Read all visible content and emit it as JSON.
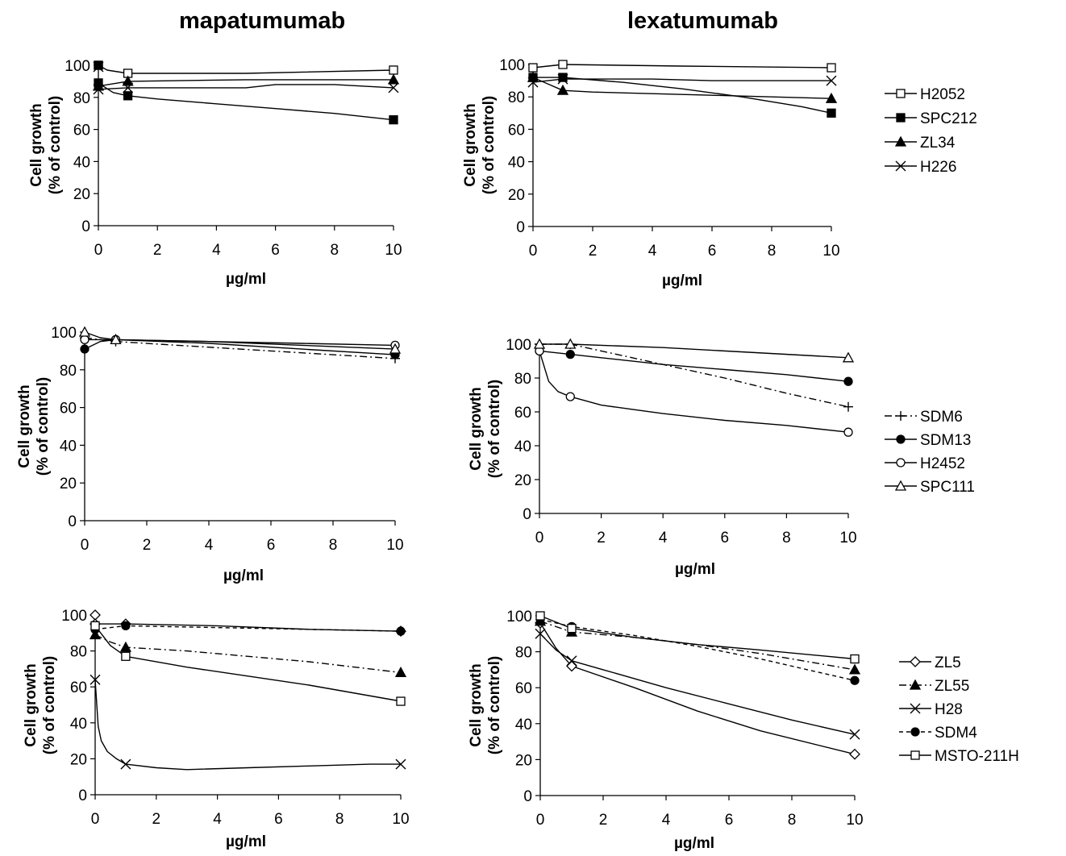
{
  "column_titles": [
    "mapatumumab",
    "lexatumumab"
  ],
  "chart_data": [
    {
      "type": "line",
      "title": "mapatumumab",
      "xlabel": "µg/ml",
      "ylabel": "Cell growth (% of control)",
      "xlim": [
        0,
        10
      ],
      "ylim": [
        0,
        100
      ],
      "xticks": [
        0,
        2,
        4,
        6,
        8,
        10
      ],
      "yticks": [
        0,
        20,
        40,
        60,
        80,
        100
      ],
      "grid": false,
      "series": [
        {
          "name": "H2052",
          "marker": "square-open",
          "dash": "solid",
          "x": [
            0,
            1,
            10
          ],
          "y": [
            100,
            95,
            97
          ],
          "curve_x": [
            0,
            0.3,
            1,
            5,
            10
          ],
          "curve_y": [
            100,
            97,
            95,
            95,
            97
          ]
        },
        {
          "name": "SPC212",
          "marker": "square-filled",
          "dash": "solid",
          "x": [
            0,
            0,
            1,
            10
          ],
          "y": [
            100,
            89,
            81,
            66
          ],
          "curve_x": [
            0,
            0.5,
            1,
            2,
            4,
            6,
            8,
            10
          ],
          "curve_y": [
            89,
            83,
            81,
            79,
            76,
            73,
            70,
            66
          ]
        },
        {
          "name": "ZL34",
          "marker": "triangle-filled",
          "dash": "solid",
          "x": [
            0,
            1,
            10
          ],
          "y": [
            87,
            90,
            91
          ],
          "curve_x": [
            0,
            1,
            5,
            10
          ],
          "curve_y": [
            87,
            90,
            91,
            91
          ]
        },
        {
          "name": "H226",
          "marker": "x",
          "dash": "solid",
          "x": [
            0,
            0,
            1,
            10
          ],
          "y": [
            99,
            85,
            86,
            86
          ],
          "curve_x": [
            0,
            1,
            5,
            6,
            8,
            10
          ],
          "curve_y": [
            85,
            86,
            86,
            88,
            88,
            86
          ]
        }
      ],
      "legend": {
        "placement": "right",
        "entries": [
          "H2052",
          "SPC212",
          "ZL34",
          "H226"
        ]
      }
    },
    {
      "type": "line",
      "title": "lexatumumab",
      "xlabel": "µg/ml",
      "ylabel": "Cell growth (% of control)",
      "xlim": [
        0,
        10
      ],
      "ylim": [
        0,
        100
      ],
      "xticks": [
        0,
        2,
        4,
        6,
        8,
        10
      ],
      "yticks": [
        0,
        20,
        40,
        60,
        80,
        100
      ],
      "grid": false,
      "series": [
        {
          "name": "H2052",
          "marker": "square-open",
          "dash": "solid",
          "x": [
            0,
            1,
            10
          ],
          "y": [
            98,
            100,
            98
          ],
          "curve_x": [
            0,
            0.5,
            1,
            5,
            10
          ],
          "curve_y": [
            98,
            99,
            100,
            99,
            98
          ]
        },
        {
          "name": "SPC212",
          "marker": "square-filled",
          "dash": "solid",
          "x": [
            0,
            1,
            10
          ],
          "y": [
            92,
            92,
            70
          ],
          "curve_x": [
            0,
            1,
            3,
            5,
            7,
            9,
            10
          ],
          "curve_y": [
            92,
            92,
            89,
            85,
            80,
            74,
            70
          ]
        },
        {
          "name": "ZL34",
          "marker": "triangle-filled",
          "dash": "solid",
          "x": [
            0,
            1,
            10
          ],
          "y": [
            92,
            84,
            79
          ],
          "curve_x": [
            0,
            0.5,
            1,
            2,
            4,
            6,
            8,
            10
          ],
          "curve_y": [
            92,
            88,
            84,
            83,
            82,
            81,
            80,
            79
          ]
        },
        {
          "name": "H226",
          "marker": "x",
          "dash": "solid",
          "x": [
            0,
            1,
            10
          ],
          "y": [
            89,
            91,
            90
          ],
          "curve_x": [
            0,
            1,
            4,
            6,
            8,
            10
          ],
          "curve_y": [
            89,
            91,
            91,
            90,
            90,
            90
          ]
        }
      ],
      "legend": {
        "placement": "right",
        "entries": [
          "H2052",
          "SPC212",
          "ZL34",
          "H226"
        ]
      }
    },
    {
      "type": "line",
      "title": "",
      "xlabel": "µg/ml",
      "ylabel": "Cell growth (% of control)",
      "xlim": [
        0,
        10
      ],
      "ylim": [
        0,
        100
      ],
      "xticks": [
        0,
        2,
        4,
        6,
        8,
        10
      ],
      "yticks": [
        0,
        20,
        40,
        60,
        80,
        100
      ],
      "grid": false,
      "series": [
        {
          "name": "SDM6",
          "marker": "plus",
          "dash": "dashdot",
          "x": [
            0,
            1,
            10
          ],
          "y": [
            97,
            95,
            86
          ],
          "curve_x": [
            0,
            1,
            3,
            6,
            9,
            10
          ],
          "curve_y": [
            97,
            95,
            93,
            90,
            87,
            86
          ]
        },
        {
          "name": "SDM13",
          "marker": "circle-filled",
          "dash": "solid",
          "x": [
            0,
            1,
            10
          ],
          "y": [
            91,
            96,
            88
          ],
          "curve_x": [
            0,
            0.5,
            1,
            4,
            7,
            10
          ],
          "curve_y": [
            91,
            95,
            96,
            94,
            91,
            88
          ]
        },
        {
          "name": "H2452",
          "marker": "circle-open",
          "dash": "solid",
          "x": [
            0,
            1,
            10
          ],
          "y": [
            96,
            96,
            93
          ],
          "curve_x": [
            0,
            1,
            4,
            7,
            10
          ],
          "curve_y": [
            96,
            96,
            95,
            94,
            93
          ]
        },
        {
          "name": "SPC111",
          "marker": "triangle-open",
          "dash": "solid",
          "x": [
            0,
            1,
            10
          ],
          "y": [
            100,
            96,
            91
          ],
          "curve_x": [
            0,
            0.5,
            1,
            4,
            7,
            10
          ],
          "curve_y": [
            100,
            97,
            96,
            95,
            93,
            91
          ]
        }
      ],
      "legend": {
        "placement": "right",
        "entries": [
          "SDM6",
          "SDM13",
          "H2452",
          "SPC111"
        ]
      }
    },
    {
      "type": "line",
      "title": "",
      "xlabel": "µg/ml",
      "ylabel": "Cell growth (% of control)",
      "xlim": [
        0,
        10
      ],
      "ylim": [
        0,
        100
      ],
      "xticks": [
        0,
        2,
        4,
        6,
        8,
        10
      ],
      "yticks": [
        0,
        20,
        40,
        60,
        80,
        100
      ],
      "grid": false,
      "series": [
        {
          "name": "SDM6",
          "marker": "plus",
          "dash": "dashdot",
          "x": [
            0,
            1,
            10
          ],
          "y": [
            100,
            100,
            63
          ],
          "curve_x": [
            0,
            1,
            2,
            4,
            6,
            8,
            10
          ],
          "curve_y": [
            100,
            100,
            96,
            88,
            80,
            71,
            63
          ]
        },
        {
          "name": "SDM13",
          "marker": "circle-filled",
          "dash": "solid",
          "x": [
            0,
            1,
            10
          ],
          "y": [
            96,
            94,
            78
          ],
          "curve_x": [
            0,
            1,
            2,
            4,
            6,
            8,
            10
          ],
          "curve_y": [
            96,
            94,
            92,
            88,
            85,
            82,
            78
          ]
        },
        {
          "name": "H2452",
          "marker": "circle-open",
          "dash": "solid",
          "x": [
            0,
            1,
            10
          ],
          "y": [
            96,
            69,
            48
          ],
          "curve_x": [
            0,
            0.1,
            0.3,
            0.6,
            1,
            2,
            4,
            6,
            8,
            10
          ],
          "curve_y": [
            96,
            90,
            78,
            72,
            69,
            64,
            59,
            55,
            52,
            48
          ]
        },
        {
          "name": "SPC111",
          "marker": "triangle-open",
          "dash": "solid",
          "x": [
            0,
            1,
            10
          ],
          "y": [
            100,
            100,
            92
          ],
          "curve_x": [
            0,
            1,
            4,
            7,
            10
          ],
          "curve_y": [
            100,
            100,
            98,
            95,
            92
          ]
        }
      ],
      "legend": {
        "placement": "right",
        "entries": [
          "SDM6",
          "SDM13",
          "H2452",
          "SPC111"
        ]
      }
    },
    {
      "type": "line",
      "title": "",
      "xlabel": "µg/ml",
      "ylabel": "Cell growth (% of control)",
      "xlim": [
        0,
        10
      ],
      "ylim": [
        0,
        100
      ],
      "xticks": [
        0,
        2,
        4,
        6,
        8,
        10
      ],
      "yticks": [
        0,
        20,
        40,
        60,
        80,
        100
      ],
      "grid": false,
      "series": [
        {
          "name": "ZL5",
          "marker": "diamond-open",
          "dash": "solid",
          "x": [
            0,
            0,
            1,
            10
          ],
          "y": [
            100,
            95,
            95,
            91
          ],
          "curve_x": [
            0,
            1,
            4,
            7,
            10
          ],
          "curve_y": [
            95,
            95,
            94,
            92,
            91
          ]
        },
        {
          "name": "ZL55",
          "marker": "triangle-filled",
          "dash": "dashdot",
          "x": [
            0,
            1,
            10
          ],
          "y": [
            89,
            82,
            68
          ],
          "curve_x": [
            0,
            0.5,
            1,
            3,
            5,
            7,
            10
          ],
          "curve_y": [
            89,
            85,
            82,
            80,
            77,
            74,
            68
          ]
        },
        {
          "name": "H28",
          "marker": "x",
          "dash": "solid",
          "x": [
            0,
            1,
            10
          ],
          "y": [
            64,
            17,
            17
          ],
          "curve_x": [
            0,
            0.1,
            0.2,
            0.4,
            0.7,
            1,
            2,
            3,
            5,
            7,
            9,
            10
          ],
          "curve_y": [
            64,
            38,
            30,
            24,
            20,
            17,
            15,
            14,
            15,
            16,
            17,
            17
          ]
        },
        {
          "name": "SDM4",
          "marker": "circle-filled",
          "dash": "dashed",
          "x": [
            0,
            1,
            10
          ],
          "y": [
            92,
            94,
            91
          ],
          "curve_x": [
            0,
            1,
            4,
            7,
            10
          ],
          "curve_y": [
            92,
            94,
            93,
            92,
            91
          ]
        },
        {
          "name": "MSTO-211H",
          "marker": "square-open",
          "dash": "solid",
          "x": [
            0,
            1,
            10
          ],
          "y": [
            94,
            77,
            52
          ],
          "curve_x": [
            0,
            0.5,
            1,
            3,
            5,
            7,
            10
          ],
          "curve_y": [
            94,
            83,
            77,
            71,
            66,
            61,
            52
          ]
        }
      ],
      "legend": {
        "placement": "right",
        "entries": [
          "ZL5",
          "ZL55",
          "H28",
          "SDM4",
          "MSTO-211H"
        ]
      }
    },
    {
      "type": "line",
      "title": "",
      "xlabel": "µg/ml",
      "ylabel": "Cell growth (% of control)",
      "xlim": [
        0,
        10
      ],
      "ylim": [
        0,
        100
      ],
      "xticks": [
        0,
        2,
        4,
        6,
        8,
        10
      ],
      "yticks": [
        0,
        20,
        40,
        60,
        80,
        100
      ],
      "grid": false,
      "series": [
        {
          "name": "ZL5",
          "marker": "diamond-open",
          "dash": "solid",
          "x": [
            0,
            1,
            10
          ],
          "y": [
            96,
            72,
            23
          ],
          "curve_x": [
            0,
            0.5,
            1,
            3,
            5,
            7,
            10
          ],
          "curve_y": [
            96,
            82,
            72,
            60,
            47,
            36,
            23
          ]
        },
        {
          "name": "ZL55",
          "marker": "triangle-filled",
          "dash": "dashdot",
          "x": [
            0,
            1,
            10
          ],
          "y": [
            97,
            91,
            70
          ],
          "curve_x": [
            0,
            1,
            3,
            5,
            7,
            10
          ],
          "curve_y": [
            97,
            91,
            88,
            84,
            79,
            70
          ]
        },
        {
          "name": "H28",
          "marker": "x",
          "dash": "solid",
          "x": [
            0,
            1,
            10
          ],
          "y": [
            90,
            75,
            34
          ],
          "curve_x": [
            0,
            0.5,
            1,
            2,
            4,
            6,
            8,
            10
          ],
          "curve_y": [
            90,
            81,
            75,
            70,
            60,
            51,
            42,
            34
          ]
        },
        {
          "name": "SDM4",
          "marker": "circle-filled",
          "dash": "dashed",
          "x": [
            0,
            1,
            10
          ],
          "y": [
            98,
            94,
            64
          ],
          "curve_x": [
            0,
            1,
            3,
            5,
            7,
            10
          ],
          "curve_y": [
            98,
            94,
            89,
            83,
            76,
            64
          ]
        },
        {
          "name": "MSTO-211H",
          "marker": "square-open",
          "dash": "solid",
          "x": [
            0,
            1,
            10
          ],
          "y": [
            100,
            93,
            76
          ],
          "curve_x": [
            0,
            1,
            3,
            5,
            7,
            10
          ],
          "curve_y": [
            100,
            93,
            88,
            84,
            81,
            76
          ]
        }
      ],
      "legend": {
        "placement": "right",
        "entries": [
          "ZL5",
          "ZL55",
          "H28",
          "SDM4",
          "MSTO-211H"
        ]
      }
    }
  ]
}
